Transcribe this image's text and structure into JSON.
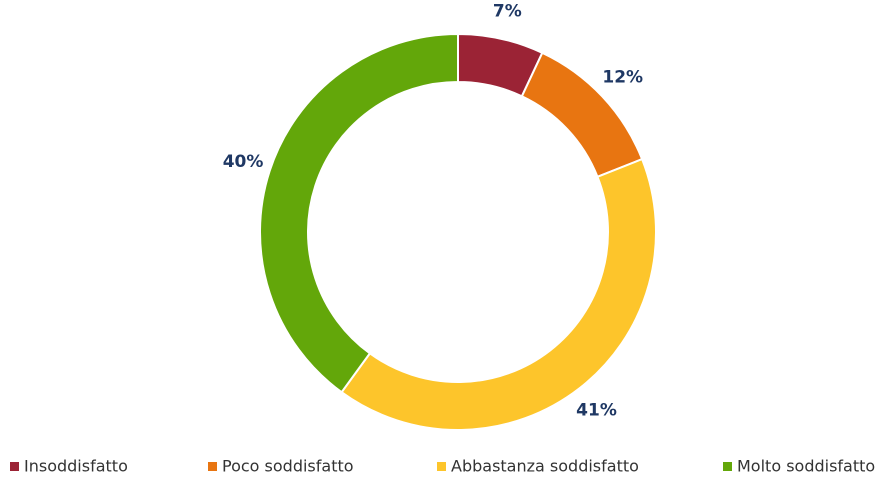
{
  "chart_data": {
    "type": "donut",
    "categories": [
      "Insoddisfatto",
      "Poco soddisfatto",
      "Abbastanza soddisfatto",
      "Molto soddisfatto"
    ],
    "values": [
      7,
      12,
      41,
      40
    ],
    "value_labels": [
      "7%",
      "12%",
      "41%",
      "40%"
    ],
    "colors": [
      "#9b2335",
      "#e87511",
      "#fdc52b",
      "#63a70a"
    ],
    "legend": "bottom"
  }
}
